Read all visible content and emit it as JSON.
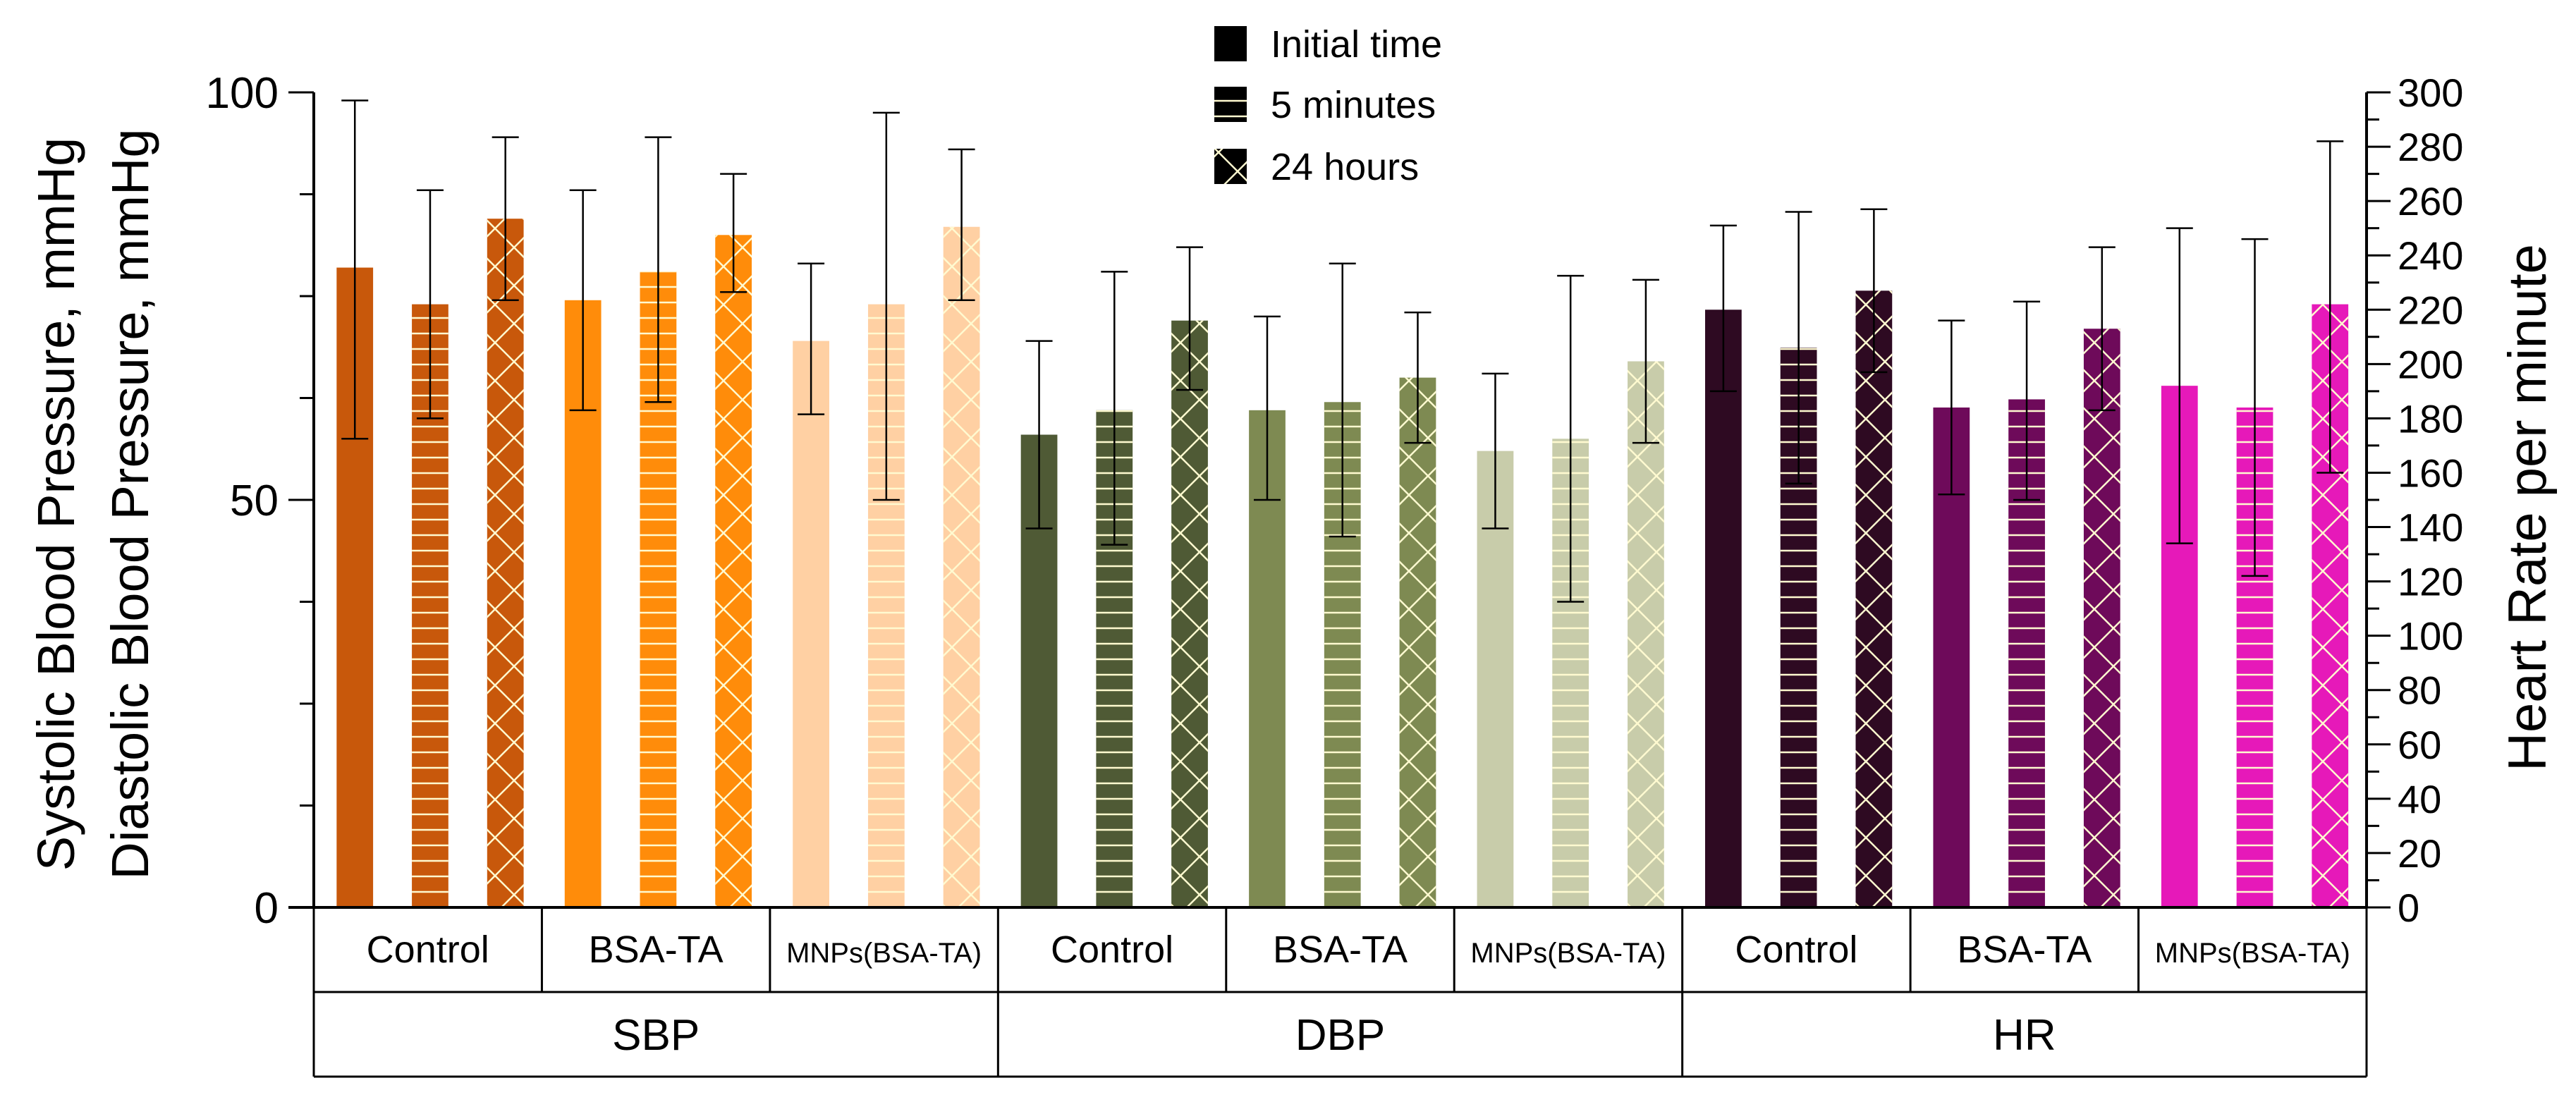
{
  "chart_data": {
    "type": "bar",
    "left_axis": {
      "label_line1": "Systolic Blood Pressure, mmHg",
      "label_line2": "Diastolic Blood Pressure, mmHg",
      "range": [
        0,
        100
      ],
      "ticks": [
        0,
        50,
        100
      ]
    },
    "right_axis": {
      "label": "Heart Rate per minute",
      "range": [
        0,
        300
      ],
      "ticks": [
        0,
        20,
        40,
        60,
        80,
        100,
        120,
        140,
        160,
        180,
        200,
        220,
        240,
        260,
        280,
        300
      ]
    },
    "legend": {
      "position": "top-center",
      "entries": [
        {
          "label": "Initial time",
          "pattern": "solid"
        },
        {
          "label": "5 minutes",
          "pattern": "horizontal"
        },
        {
          "label": "24 hours",
          "pattern": "crosshatch"
        }
      ]
    },
    "groups": [
      {
        "name": "SBP",
        "axis": "left",
        "subgroups": [
          {
            "label": "Control",
            "color": "#c8580b",
            "bars": [
              {
                "time": "Initial time",
                "value": 78.5,
                "err_low": 57.5,
                "err_high": 99.0
              },
              {
                "time": "5 minutes",
                "value": 74.0,
                "err_low": 60.0,
                "err_high": 88.0
              },
              {
                "time": "24 hours",
                "value": 84.5,
                "err_low": 74.5,
                "err_high": 94.5
              }
            ]
          },
          {
            "label": "BSA-TA",
            "color": "#ff8c0a",
            "bars": [
              {
                "time": "Initial time",
                "value": 74.5,
                "err_low": 61.0,
                "err_high": 88.0
              },
              {
                "time": "5 minutes",
                "value": 78.0,
                "err_low": 62.0,
                "err_high": 94.5
              },
              {
                "time": "24 hours",
                "value": 82.5,
                "err_low": 75.5,
                "err_high": 90.0
              }
            ]
          },
          {
            "label": "MNPs(BSA-TA)",
            "color": "#ffd0a3",
            "bars": [
              {
                "time": "Initial time",
                "value": 69.5,
                "err_low": 60.5,
                "err_high": 79.0
              },
              {
                "time": "5 minutes",
                "value": 74.0,
                "err_low": 50.0,
                "err_high": 97.5
              },
              {
                "time": "24 hours",
                "value": 83.5,
                "err_low": 74.5,
                "err_high": 93.0
              }
            ]
          }
        ]
      },
      {
        "name": "DBP",
        "axis": "left",
        "subgroups": [
          {
            "label": "Control",
            "color": "#4f5a35",
            "bars": [
              {
                "time": "Initial time",
                "value": 58.0,
                "err_low": 46.5,
                "err_high": 69.5
              },
              {
                "time": "5 minutes",
                "value": 61.0,
                "err_low": 44.5,
                "err_high": 78.0
              },
              {
                "time": "24 hours",
                "value": 72.0,
                "err_low": 63.5,
                "err_high": 81.0
              }
            ]
          },
          {
            "label": "BSA-TA",
            "color": "#7e8a52",
            "bars": [
              {
                "time": "Initial time",
                "value": 61.0,
                "err_low": 50.0,
                "err_high": 72.5
              },
              {
                "time": "5 minutes",
                "value": 62.0,
                "err_low": 45.5,
                "err_high": 79.0
              },
              {
                "time": "24 hours",
                "value": 65.0,
                "err_low": 57.0,
                "err_high": 73.0
              }
            ]
          },
          {
            "label": "MNPs(BSA-TA)",
            "color": "#c8ccaa",
            "bars": [
              {
                "time": "Initial time",
                "value": 56.0,
                "err_low": 46.5,
                "err_high": 65.5
              },
              {
                "time": "5 minutes",
                "value": 57.5,
                "err_low": 37.5,
                "err_high": 77.5
              },
              {
                "time": "24 hours",
                "value": 67.0,
                "err_low": 57.0,
                "err_high": 77.0
              }
            ]
          }
        ]
      },
      {
        "name": "HR",
        "axis": "right",
        "subgroups": [
          {
            "label": "Control",
            "color": "#2e0a22",
            "bars": [
              {
                "time": "Initial time",
                "value": 220.0,
                "err_low": 190.0,
                "err_high": 251.0
              },
              {
                "time": "5 minutes",
                "value": 206.0,
                "err_low": 156.0,
                "err_high": 256.0
              },
              {
                "time": "24 hours",
                "value": 227.0,
                "err_low": 197.0,
                "err_high": 257.0
              }
            ]
          },
          {
            "label": "BSA-TA",
            "color": "#6e0a5a",
            "bars": [
              {
                "time": "Initial time",
                "value": 184.0,
                "err_low": 152.0,
                "err_high": 216.0
              },
              {
                "time": "5 minutes",
                "value": 187.0,
                "err_low": 150.0,
                "err_high": 223.0
              },
              {
                "time": "24 hours",
                "value": 213.0,
                "err_low": 183.0,
                "err_high": 243.0
              }
            ]
          },
          {
            "label": "MNPs(BSA-TA)",
            "color": "#e619b9",
            "bars": [
              {
                "time": "Initial time",
                "value": 192.0,
                "err_low": 134.0,
                "err_high": 250.0
              },
              {
                "time": "5 minutes",
                "value": 184.0,
                "err_low": 122.0,
                "err_high": 246.0
              },
              {
                "time": "24 hours",
                "value": 222.0,
                "err_low": 160.0,
                "err_high": 282.0
              }
            ]
          }
        ]
      }
    ]
  }
}
